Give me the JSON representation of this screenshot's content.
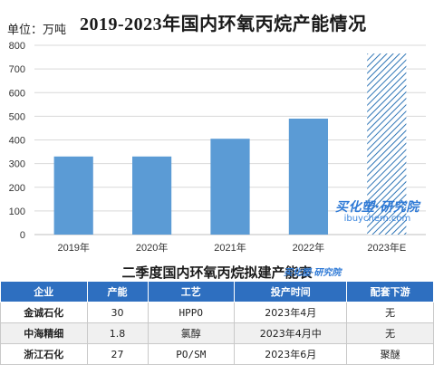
{
  "chart_data": {
    "type": "bar",
    "title": "2019-2023年国内环氧丙烷产能情况",
    "unit_label": "单位：万吨",
    "categories": [
      "2019年",
      "2020年",
      "2021年",
      "2022年",
      "2023年E"
    ],
    "values": [
      330,
      330,
      405,
      490,
      765
    ],
    "bar_styles": [
      "solid",
      "solid",
      "solid",
      "solid",
      "hatched"
    ],
    "ylim": [
      0,
      800
    ],
    "yticks": [
      0,
      100,
      200,
      300,
      400,
      500,
      600,
      700,
      800
    ],
    "grid": true,
    "colors": {
      "bar": "#5b9bd5",
      "hatch": "#2e75b6",
      "grid": "#d9d9d9"
    }
  },
  "watermark": {
    "brand": "买化塑·研究院",
    "url": "ibuychem.com"
  },
  "table": {
    "title": "二季度国内环氧丙烷拟建产能表",
    "watermark": "买化塑·研究院",
    "headers": [
      "企业",
      "产能",
      "工艺",
      "投产时间",
      "配套下游"
    ],
    "rows": [
      [
        "金诚石化",
        "30",
        "HPPO",
        "2023年4月",
        "无"
      ],
      [
        "中海精细",
        "1.8",
        "氯醇",
        "2023年4月中",
        "无"
      ],
      [
        "浙江石化",
        "27",
        "PO/SM",
        "2023年6月",
        "聚醚"
      ]
    ],
    "colors": {
      "header_bg": "#2e6fc0",
      "alt_row": "#f0f0f0"
    }
  }
}
